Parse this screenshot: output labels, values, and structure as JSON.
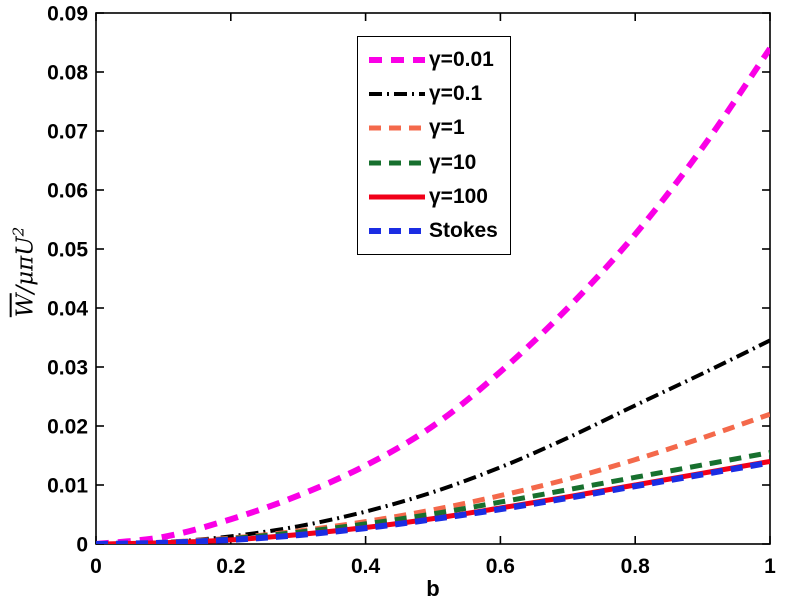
{
  "chart_data": {
    "type": "line",
    "title": "",
    "xlabel": "b",
    "ylabel": "W̅/μπU²",
    "ylabel_parts": {
      "numerator": "W",
      "divider": "/",
      "denominator": "μπU",
      "exponent": "2"
    },
    "xlim": [
      0,
      1
    ],
    "ylim": [
      0,
      0.09
    ],
    "grid": false,
    "background": "#FFFFFF",
    "axis_color": "#000000",
    "legend_position": "upper-center",
    "xticks": [
      {
        "value": 0,
        "label": "0"
      },
      {
        "value": 0.2,
        "label": "0.2"
      },
      {
        "value": 0.4,
        "label": "0.4"
      },
      {
        "value": 0.6,
        "label": "0.6"
      },
      {
        "value": 0.8,
        "label": "0.8"
      },
      {
        "value": 1,
        "label": "1"
      }
    ],
    "yticks": [
      {
        "value": 0,
        "label": "0"
      },
      {
        "value": 0.01,
        "label": "0.01"
      },
      {
        "value": 0.02,
        "label": "0.02"
      },
      {
        "value": 0.03,
        "label": "0.03"
      },
      {
        "value": 0.04,
        "label": "0.04"
      },
      {
        "value": 0.05,
        "label": "0.05"
      },
      {
        "value": 0.06,
        "label": "0.06"
      },
      {
        "value": 0.07,
        "label": "0.07"
      },
      {
        "value": 0.08,
        "label": "0.08"
      },
      {
        "value": 0.09,
        "label": "0.09"
      }
    ],
    "x": [
      0,
      0.1,
      0.2,
      0.3,
      0.4,
      0.5,
      0.6,
      0.7,
      0.8,
      0.9,
      1.0
    ],
    "series": [
      {
        "key": "gamma-0.01",
        "name": "γ=0.01",
        "color": "#FA00E6",
        "style": "dashed",
        "dash": "13 9",
        "width": 6,
        "values": [
          0,
          0.0012,
          0.0042,
          0.0082,
          0.0133,
          0.02,
          0.0292,
          0.04,
          0.0525,
          0.0672,
          0.084
        ]
      },
      {
        "key": "gamma-0.1",
        "name": "γ=0.1",
        "color": "#000000",
        "style": "dash-dot",
        "dash": "13 5 2 5",
        "width": 4,
        "values": [
          0,
          0.0003,
          0.0013,
          0.003,
          0.0055,
          0.0088,
          0.013,
          0.018,
          0.0235,
          0.0289,
          0.0345
        ]
      },
      {
        "key": "gamma-1",
        "name": "γ=1",
        "color": "#F4694B",
        "style": "dashed",
        "dash": "12 8",
        "width": 5,
        "values": [
          0,
          0.0003,
          0.001,
          0.0022,
          0.0038,
          0.0058,
          0.0082,
          0.011,
          0.0143,
          0.018,
          0.022
        ]
      },
      {
        "key": "gamma-10",
        "name": "γ=10",
        "color": "#17702E",
        "style": "dashed",
        "dash": "12 8",
        "width": 5,
        "values": [
          0,
          0.0002,
          0.0009,
          0.002,
          0.0034,
          0.0051,
          0.0071,
          0.0092,
          0.0113,
          0.0134,
          0.0155
        ]
      },
      {
        "key": "gamma-100",
        "name": "γ=100",
        "color": "#F10019",
        "style": "solid",
        "dash": "none",
        "width": 5,
        "values": [
          0,
          0.0002,
          0.0007,
          0.0016,
          0.0028,
          0.0043,
          0.0061,
          0.008,
          0.01,
          0.012,
          0.014
        ]
      },
      {
        "key": "stokes",
        "name": "Stokes",
        "color": "#1B2DE3",
        "style": "dashed",
        "dash": "12 8",
        "width": 6,
        "values": [
          0,
          0.0002,
          0.0007,
          0.0015,
          0.0027,
          0.0042,
          0.0059,
          0.0078,
          0.0098,
          0.0118,
          0.0138
        ]
      }
    ]
  }
}
